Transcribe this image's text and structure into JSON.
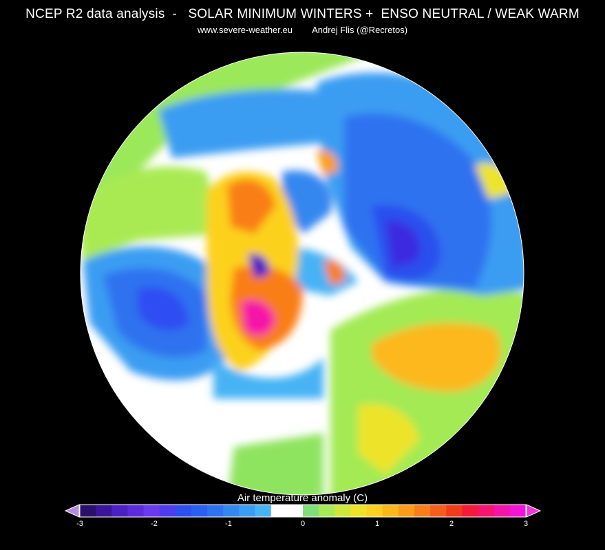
{
  "header": {
    "title": "NCEP R2 data analysis  -   SOLAR MINIMUM WINTERS +  ENSO NEUTRAL / WEAK WARM",
    "subtitle": "www.severe-weather.eu        Andrej Flis (@Recretos)"
  },
  "map": {
    "projection": "north-polar-stereographic",
    "variable": "air-temperature-anomaly"
  },
  "colorbar": {
    "title": "Air temperature anomaly (C)",
    "ticks": [
      "-3",
      "-2",
      "-1",
      "0",
      "1",
      "2",
      "3"
    ],
    "range": [
      -3,
      3
    ],
    "colors": [
      "#2b0f6a",
      "#3a149a",
      "#4b20c6",
      "#5a2cdd",
      "#6a3aee",
      "#4d3cf0",
      "#2f4ef2",
      "#2a5ff2",
      "#2f72f0",
      "#3587f0",
      "#3b9df2",
      "#47b3f4",
      "#ffffff",
      "#ffffff",
      "#7fe07a",
      "#a8ea55",
      "#cfe73a",
      "#ede42a",
      "#fcd11f",
      "#fcb81a",
      "#fb9d18",
      "#f97e18",
      "#f55e1a",
      "#f23a1c",
      "#f51a3a",
      "#f5146e",
      "#f514a8",
      "#f514d6"
    ],
    "under_color": "#b58ae0",
    "over_color": "#f536d6"
  }
}
